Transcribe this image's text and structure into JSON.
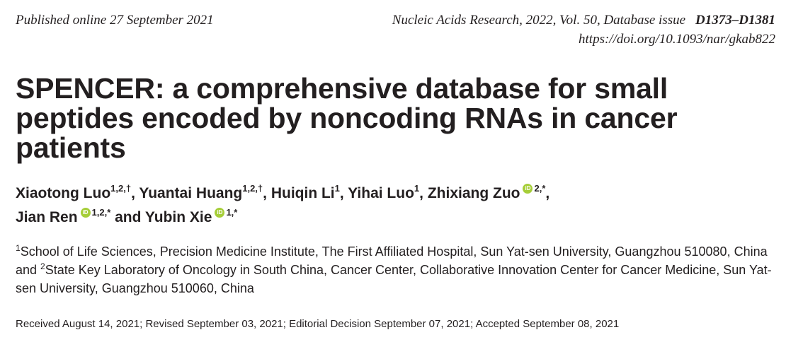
{
  "header": {
    "published": "Published online 27 September 2021",
    "journal": "Nucleic Acids Research, 2022, Vol. 50, Database issue",
    "pages": "D1373–D1381",
    "doi": "https://doi.org/10.1093/nar/gkab822"
  },
  "title_lines": [
    "SPENCER: a comprehensive database for small",
    "peptides encoded by noncoding RNAs in cancer",
    "patients"
  ],
  "authors": [
    {
      "name": "Xiaotong Luo",
      "sup": "1,2,†",
      "orcid": false,
      "sep": ", "
    },
    {
      "name": "Yuantai Huang",
      "sup": "1,2,†",
      "orcid": false,
      "sep": ", "
    },
    {
      "name": "Huiqin Li",
      "sup": "1",
      "orcid": false,
      "sep": ", "
    },
    {
      "name": "Yihai Luo",
      "sup": "1",
      "orcid": false,
      "sep": ", "
    },
    {
      "name": "Zhixiang Zuo",
      "sup": "2,*",
      "orcid": true,
      "sep": ","
    },
    {
      "name": "Jian Ren",
      "sup": "1,2,*",
      "orcid": true,
      "sep": " and "
    },
    {
      "name": "Yubin Xie",
      "sup": "1,*",
      "orcid": true,
      "sep": ""
    }
  ],
  "orcid_label": "iD",
  "orcid_color": "#a6ce39",
  "affiliations": [
    {
      "num": "1",
      "text": "School of Life Sciences, Precision Medicine Institute, The First Affiliated Hospital, Sun Yat-sen University, Guangzhou 510080, China and "
    },
    {
      "num": "2",
      "text": "State Key Laboratory of Oncology in South China, Cancer Center, Collaborative Innovation Center for Cancer Medicine, Sun Yat-sen University, Guangzhou 510060, China"
    }
  ],
  "dates": "Received August 14, 2021; Revised September 03, 2021; Editorial Decision September 07, 2021; Accepted September 08, 2021"
}
